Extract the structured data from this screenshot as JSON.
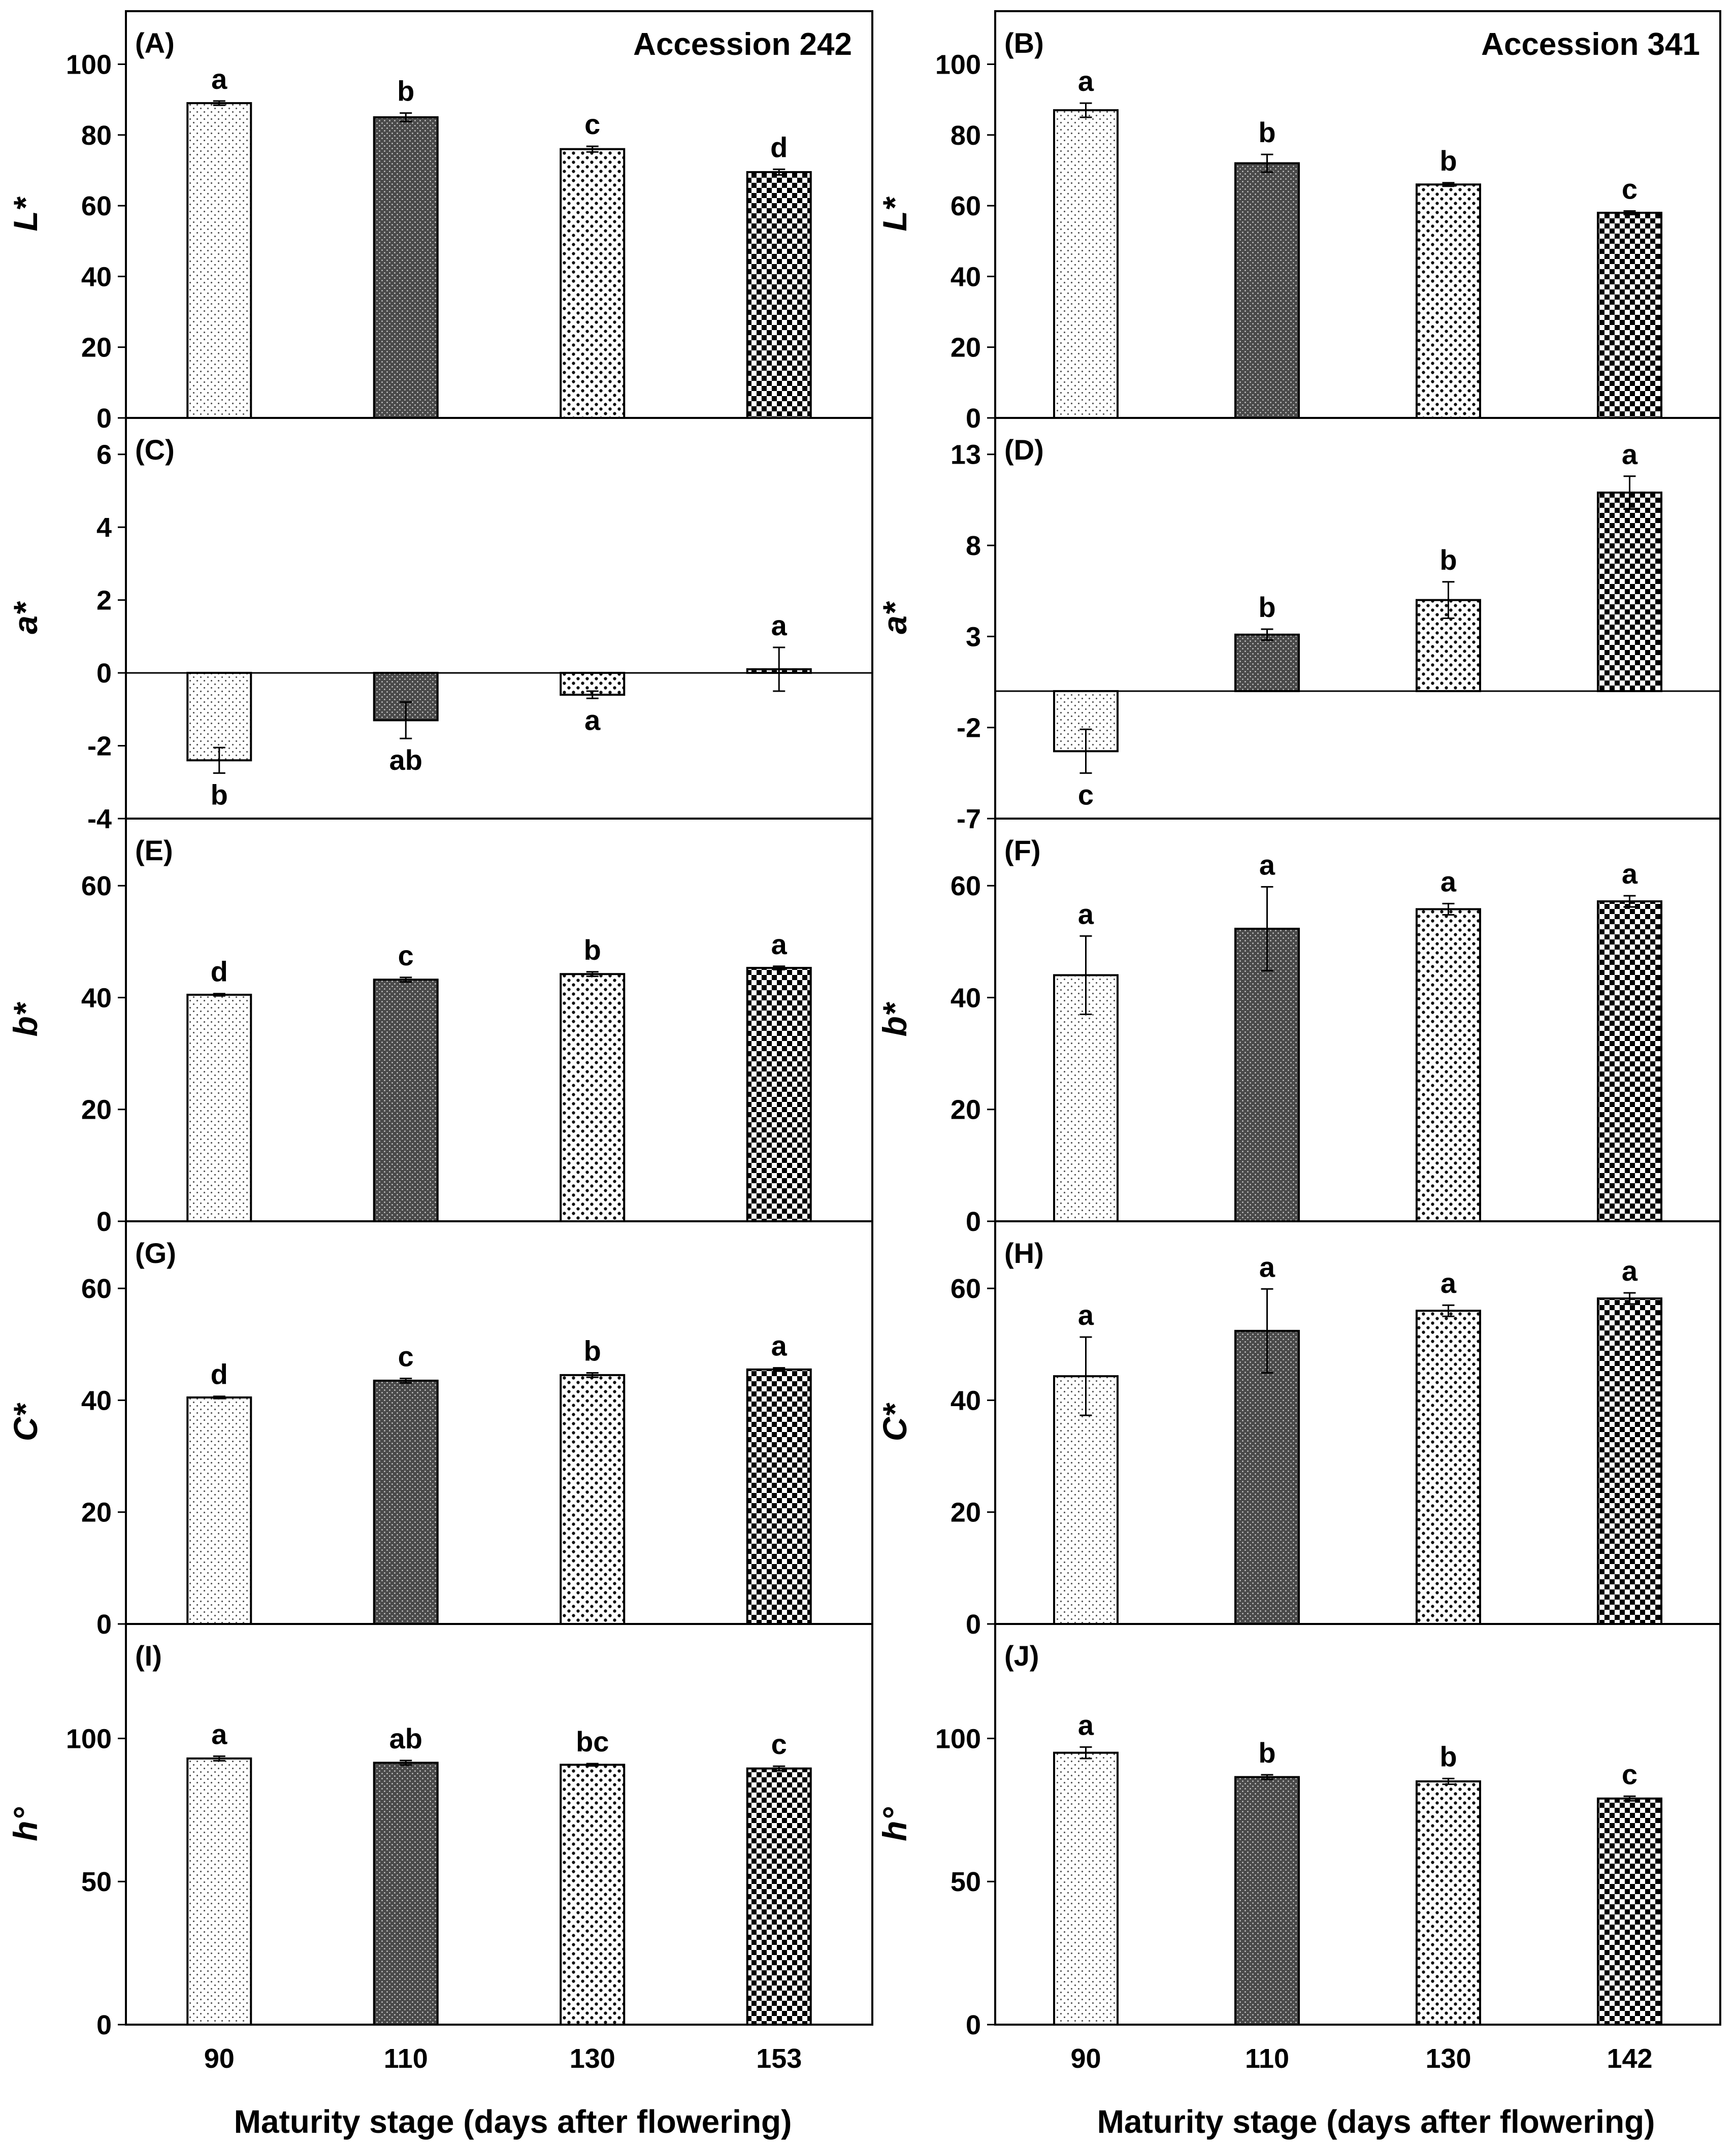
{
  "chart_data": [
    {
      "panel": "(A)",
      "type": "bar",
      "title": "Accession 242",
      "ylabel": "L*",
      "ylim": [
        0,
        115
      ],
      "yticks": [
        0,
        20,
        40,
        60,
        80,
        100
      ],
      "categories": [
        "90",
        "110",
        "130",
        "153"
      ],
      "values": [
        89,
        85,
        76,
        69.5
      ],
      "errors": [
        0.6,
        1.2,
        0.8,
        0.8
      ],
      "letters": [
        "a",
        "b",
        "c",
        "d"
      ],
      "letter_side": [
        "top",
        "top",
        "top",
        "top"
      ],
      "zero_line": false
    },
    {
      "panel": "(B)",
      "type": "bar",
      "title": "Accession 341",
      "ylabel": "L*",
      "ylim": [
        0,
        115
      ],
      "yticks": [
        0,
        20,
        40,
        60,
        80,
        100
      ],
      "categories": [
        "90",
        "110",
        "130",
        "142"
      ],
      "values": [
        87,
        72,
        66,
        58
      ],
      "errors": [
        2,
        2.5,
        0.5,
        0.5
      ],
      "letters": [
        "a",
        "b",
        "b",
        "c"
      ],
      "letter_side": [
        "top",
        "top",
        "top",
        "top"
      ],
      "zero_line": false
    },
    {
      "panel": "(C)",
      "type": "bar",
      "title": "",
      "ylabel": "a*",
      "ylim": [
        -4,
        7
      ],
      "yticks": [
        -4,
        -2,
        0,
        2,
        4,
        6
      ],
      "categories": [
        "90",
        "110",
        "130",
        "153"
      ],
      "values": [
        -2.4,
        -1.3,
        -0.6,
        0.1
      ],
      "errors": [
        0.35,
        0.5,
        0.1,
        0.6
      ],
      "letters": [
        "b",
        "ab",
        "a",
        "a"
      ],
      "letter_side": [
        "bottom",
        "bottom",
        "bottom",
        "top"
      ],
      "zero_line": true
    },
    {
      "panel": "(D)",
      "type": "bar",
      "title": "",
      "ylabel": "a*",
      "ylim": [
        -7,
        15
      ],
      "yticks": [
        -7,
        -2,
        3,
        8,
        13
      ],
      "categories": [
        "90",
        "110",
        "130",
        "142"
      ],
      "values": [
        -3.3,
        3.1,
        5,
        10.9
      ],
      "errors": [
        1.2,
        0.3,
        1,
        0.9
      ],
      "letters": [
        "c",
        "b",
        "b",
        "a"
      ],
      "letter_side": [
        "bottom",
        "top",
        "top",
        "top"
      ],
      "zero_line": true
    },
    {
      "panel": "(E)",
      "type": "bar",
      "title": "",
      "ylabel": "b*",
      "ylim": [
        0,
        72
      ],
      "yticks": [
        0,
        20,
        40,
        60
      ],
      "categories": [
        "90",
        "110",
        "130",
        "153"
      ],
      "values": [
        40.5,
        43.2,
        44.2,
        45.3
      ],
      "errors": [
        0.2,
        0.4,
        0.4,
        0.3
      ],
      "letters": [
        "d",
        "c",
        "b",
        "a"
      ],
      "letter_side": [
        "top",
        "top",
        "top",
        "top"
      ],
      "zero_line": false
    },
    {
      "panel": "(F)",
      "type": "bar",
      "title": "",
      "ylabel": "b*",
      "ylim": [
        0,
        72
      ],
      "yticks": [
        0,
        20,
        40,
        60
      ],
      "categories": [
        "90",
        "110",
        "130",
        "142"
      ],
      "values": [
        44,
        52.3,
        55.8,
        57.2
      ],
      "errors": [
        7,
        7.5,
        1,
        1
      ],
      "letters": [
        "a",
        "a",
        "a",
        "a"
      ],
      "letter_side": [
        "top",
        "top",
        "top",
        "top"
      ],
      "zero_line": false
    },
    {
      "panel": "(G)",
      "type": "bar",
      "title": "",
      "ylabel": "C*",
      "ylim": [
        0,
        72
      ],
      "yticks": [
        0,
        20,
        40,
        60
      ],
      "categories": [
        "90",
        "110",
        "130",
        "153"
      ],
      "values": [
        40.5,
        43.5,
        44.5,
        45.5
      ],
      "errors": [
        0.2,
        0.4,
        0.4,
        0.3
      ],
      "letters": [
        "d",
        "c",
        "b",
        "a"
      ],
      "letter_side": [
        "top",
        "top",
        "top",
        "top"
      ],
      "zero_line": false
    },
    {
      "panel": "(H)",
      "type": "bar",
      "title": "",
      "ylabel": "C*",
      "ylim": [
        0,
        72
      ],
      "yticks": [
        0,
        20,
        40,
        60
      ],
      "categories": [
        "90",
        "110",
        "130",
        "142"
      ],
      "values": [
        44.3,
        52.4,
        56,
        58.2
      ],
      "errors": [
        7,
        7.5,
        1,
        1
      ],
      "letters": [
        "a",
        "a",
        "a",
        "a"
      ],
      "letter_side": [
        "top",
        "top",
        "top",
        "top"
      ],
      "zero_line": false
    },
    {
      "panel": "(I)",
      "type": "bar",
      "title": "",
      "ylabel": "h°",
      "ylim": [
        0,
        140
      ],
      "yticks": [
        0,
        50,
        100
      ],
      "categories": [
        "90",
        "110",
        "130",
        "153"
      ],
      "values": [
        93,
        91.5,
        90.8,
        89.5
      ],
      "errors": [
        0.8,
        0.8,
        0.4,
        0.8
      ],
      "letters": [
        "a",
        "ab",
        "bc",
        "c"
      ],
      "letter_side": [
        "top",
        "top",
        "top",
        "top"
      ],
      "zero_line": false
    },
    {
      "panel": "(J)",
      "type": "bar",
      "title": "",
      "ylabel": "h°",
      "ylim": [
        0,
        140
      ],
      "yticks": [
        0,
        50,
        100
      ],
      "categories": [
        "90",
        "110",
        "130",
        "142"
      ],
      "values": [
        95,
        86.5,
        85,
        79
      ],
      "errors": [
        2,
        0.8,
        1,
        0.8
      ],
      "letters": [
        "a",
        "b",
        "b",
        "c"
      ],
      "letter_side": [
        "top",
        "top",
        "top",
        "top"
      ],
      "zero_line": false
    }
  ],
  "xlabel_left": "Maturity stage (days after flowering)",
  "xlabel_right": "Maturity stage (days after flowering)",
  "bar_patterns": [
    "fine-dots",
    "dark-dense",
    "coarse-dots",
    "checker"
  ]
}
